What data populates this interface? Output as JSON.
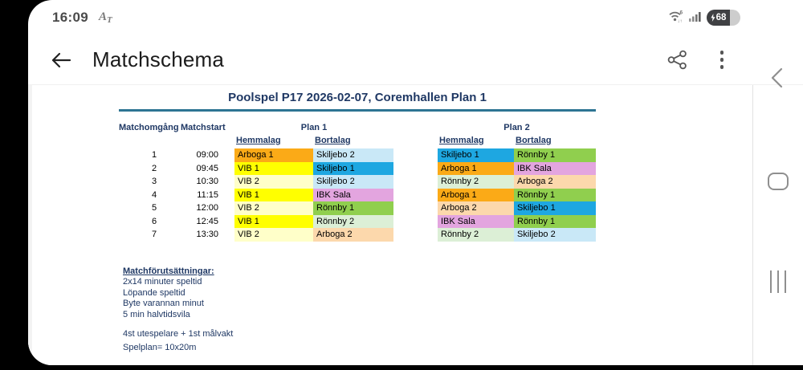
{
  "status_bar": {
    "time": "16:09",
    "notif_main": "A",
    "notif_sub": "T",
    "wifi_icon": "wifi-6-up-down",
    "signal_icon": "cellular-4-bars",
    "battery_percent": "68",
    "battery_charging": true
  },
  "app_bar": {
    "title": "Matchschema"
  },
  "nav_bar": {
    "buttons": [
      "back",
      "home",
      "recents"
    ]
  },
  "sheet": {
    "title": "Poolspel P17 2026-02-07, Coremhallen Plan 1",
    "rule_color": "#2D7493",
    "heading_color": "#1F3864",
    "columns": {
      "round": "Matchomgång",
      "start": "Matchstart",
      "plan1": "Plan 1",
      "plan2": "Plan 2",
      "home": "Hemmalag",
      "away": "Bortalag"
    },
    "rows": [
      {
        "round": "1",
        "time": "09:00",
        "p1_home": "Arboga 1",
        "p1_away": "Skiljebo 2",
        "p2_home": "Skiljebo 1",
        "p2_away": "Rönnby 1"
      },
      {
        "round": "2",
        "time": "09:45",
        "p1_home": "VIB 1",
        "p1_away": "Skiljebo 1",
        "p2_home": "Arboga 1",
        "p2_away": "IBK Sala"
      },
      {
        "round": "3",
        "time": "10:30",
        "p1_home": "VIB 2",
        "p1_away": "Skiljebo 2",
        "p2_home": "Rönnby 2",
        "p2_away": "Arboga 2"
      },
      {
        "round": "4",
        "time": "11:15",
        "p1_home": "VIB 1",
        "p1_away": "IBK Sala",
        "p2_home": "Arboga 1",
        "p2_away": "Rönnby 1"
      },
      {
        "round": "5",
        "time": "12:00",
        "p1_home": "VIB 2",
        "p1_away": "Rönnby 1",
        "p2_home": "Arboga 2",
        "p2_away": "Skiljebo 1"
      },
      {
        "round": "6",
        "time": "12:45",
        "p1_home": "VIB 1",
        "p1_away": "Rönnby 2",
        "p2_home": "IBK Sala",
        "p2_away": "Rönnby 1"
      },
      {
        "round": "7",
        "time": "13:30",
        "p1_home": "VIB 2",
        "p1_away": "Arboga 2",
        "p2_home": "Rönnby 2",
        "p2_away": "Skiljebo 2"
      }
    ],
    "team_colors": {
      "Arboga 1": "#FBAA17",
      "Arboga 2": "#FCD8AC",
      "VIB 1": "#FFFF00",
      "VIB 2": "#FFFFC9",
      "Skiljebo 1": "#1EA7E1",
      "Skiljebo 2": "#C9E8F7",
      "Rönnby 1": "#90CF4E",
      "Rönnby 2": "#DCEFD6",
      "IBK Sala": "#E3A5DF"
    },
    "notes_heading": "Matchförutsättningar:",
    "notes": [
      "2x14 minuter speltid",
      "Löpande speltid",
      "Byte varannan minut",
      "5 min halvtidsvila"
    ],
    "notes2": [
      "4st utespelare + 1st målvakt",
      "Spelplan= 10x20m"
    ]
  }
}
